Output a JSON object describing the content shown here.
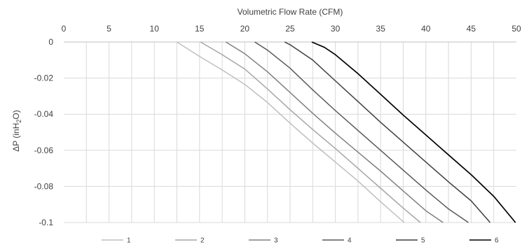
{
  "chart_data": {
    "type": "line",
    "title": "",
    "xlabel": "Volumetric Flow Rate (CFM)",
    "ylabel": "ΔP (inH₂O)",
    "ylabel_parts": {
      "pre": "ΔP (inH",
      "sub": "2",
      "post": "O)"
    },
    "xlim": [
      0,
      50
    ],
    "ylim": [
      -0.1,
      0
    ],
    "x_ticks": [
      0,
      5,
      10,
      15,
      20,
      25,
      30,
      35,
      40,
      45,
      50
    ],
    "y_ticks": [
      0,
      -0.02,
      -0.04,
      -0.06,
      -0.08,
      -0.1
    ],
    "x_tick_labels": [
      "0",
      "5",
      "10",
      "15",
      "20",
      "25",
      "30",
      "35",
      "40",
      "45",
      "50"
    ],
    "y_tick_labels": [
      "0",
      "-0.02",
      "-0.04",
      "-0.06",
      "-0.08",
      "-0.1"
    ],
    "x_axis_position": "top",
    "grid": {
      "vertical_minor_step": 2.5,
      "horizontal_step": 0.02
    },
    "legend_position": "bottom",
    "series": [
      {
        "name": "1",
        "color": "#bfbfbf",
        "points": [
          [
            12.5,
            0
          ],
          [
            15,
            -0.008
          ],
          [
            17.5,
            -0.0155
          ],
          [
            20,
            -0.0235
          ],
          [
            22.5,
            -0.0335
          ],
          [
            25,
            -0.045
          ],
          [
            27.5,
            -0.056
          ],
          [
            30,
            -0.0665
          ],
          [
            32.5,
            -0.077
          ],
          [
            35,
            -0.0885
          ],
          [
            37.6,
            -0.1
          ]
        ]
      },
      {
        "name": "2",
        "color": "#a6a6a6",
        "points": [
          [
            15.1,
            0
          ],
          [
            17.5,
            -0.007
          ],
          [
            20,
            -0.015
          ],
          [
            22.5,
            -0.026
          ],
          [
            25,
            -0.0375
          ],
          [
            27.5,
            -0.0485
          ],
          [
            30,
            -0.059
          ],
          [
            32.5,
            -0.07
          ],
          [
            35,
            -0.081
          ],
          [
            37.5,
            -0.092
          ],
          [
            39.4,
            -0.1
          ]
        ]
      },
      {
        "name": "3",
        "color": "#808080",
        "points": [
          [
            17.9,
            0
          ],
          [
            20,
            -0.0065
          ],
          [
            22.5,
            -0.0165
          ],
          [
            25,
            -0.028
          ],
          [
            27.5,
            -0.0395
          ],
          [
            30,
            -0.0505
          ],
          [
            32.5,
            -0.061
          ],
          [
            35,
            -0.0715
          ],
          [
            37.5,
            -0.0825
          ],
          [
            40,
            -0.0935
          ],
          [
            41.9,
            -0.1
          ]
        ]
      },
      {
        "name": "4",
        "color": "#595959",
        "points": [
          [
            21.1,
            0
          ],
          [
            22.5,
            -0.0045
          ],
          [
            25,
            -0.0145
          ],
          [
            27.5,
            -0.0265
          ],
          [
            30,
            -0.038
          ],
          [
            32.5,
            -0.049
          ],
          [
            35,
            -0.06
          ],
          [
            37.5,
            -0.071
          ],
          [
            40,
            -0.082
          ],
          [
            42.5,
            -0.0925
          ],
          [
            44.7,
            -0.1
          ]
        ]
      },
      {
        "name": "5",
        "color": "#3f3f3f",
        "points": [
          [
            24.4,
            0
          ],
          [
            25,
            -0.0015
          ],
          [
            27.5,
            -0.01
          ],
          [
            30,
            -0.0215
          ],
          [
            32.5,
            -0.033
          ],
          [
            35,
            -0.0445
          ],
          [
            37.5,
            -0.0555
          ],
          [
            40,
            -0.0665
          ],
          [
            42.5,
            -0.0775
          ],
          [
            45,
            -0.088
          ],
          [
            47.1,
            -0.1
          ]
        ]
      },
      {
        "name": "6",
        "color": "#000000",
        "points": [
          [
            27.4,
            0
          ],
          [
            28.8,
            -0.003
          ],
          [
            30,
            -0.007
          ],
          [
            32.5,
            -0.0175
          ],
          [
            35,
            -0.029
          ],
          [
            37.5,
            -0.0405
          ],
          [
            40,
            -0.0515
          ],
          [
            42.5,
            -0.0625
          ],
          [
            45,
            -0.0735
          ],
          [
            47.5,
            -0.0855
          ],
          [
            49.9,
            -0.1
          ]
        ]
      }
    ]
  }
}
